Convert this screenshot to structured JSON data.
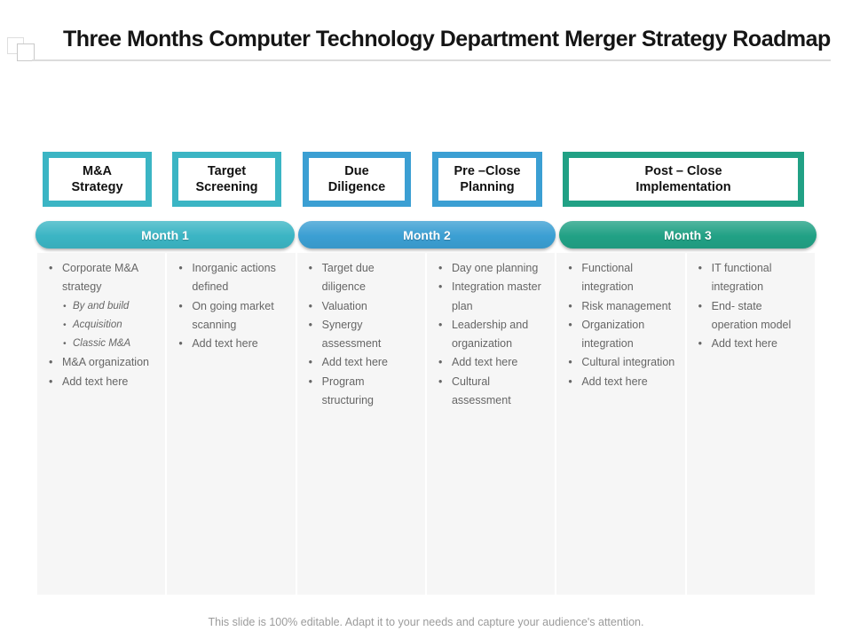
{
  "slide": {
    "title": "Three Months Computer Technology Department Merger Strategy Roadmap",
    "footer": "This slide is 100% editable. Adapt it to your needs and capture your audience's attention."
  },
  "colors": {
    "teal": "#3BB5C4",
    "blue": "#3B9FD3",
    "green": "#21A185",
    "bullet_text": "#666666",
    "column_bg": "#F6F6F6"
  },
  "phases": [
    {
      "label": "M&A\nStrategy",
      "color": "#3BB5C4"
    },
    {
      "label": "Target\nScreening",
      "color": "#3BB5C4"
    },
    {
      "label": "Due\nDiligence",
      "color": "#3B9FD3"
    },
    {
      "label": "Pre –Close\nPlanning",
      "color": "#3B9FD3"
    },
    {
      "label": "Post – Close\nImplementation",
      "color": "#21A185"
    }
  ],
  "months": [
    {
      "label": "Month 1",
      "color": "#3BB5C4"
    },
    {
      "label": "Month 2",
      "color": "#3B9FD3"
    },
    {
      "label": "Month 3",
      "color": "#21A185"
    }
  ],
  "columns": [
    {
      "month": "Month 1",
      "items": [
        {
          "text": "Corporate M&A strategy",
          "level": 1
        },
        {
          "text": "By and build",
          "level": 2
        },
        {
          "text": "Acquisition",
          "level": 2
        },
        {
          "text": "Classic M&A",
          "level": 2
        },
        {
          "text": "M&A organization",
          "level": 1
        },
        {
          "text": "Add text here",
          "level": 1
        }
      ]
    },
    {
      "month": "Month 1",
      "items": [
        {
          "text": "Inorganic actions defined",
          "level": 1
        },
        {
          "text": "On going market scanning",
          "level": 1
        },
        {
          "text": "Add text here",
          "level": 1
        }
      ]
    },
    {
      "month": "Month 2",
      "items": [
        {
          "text": "Target due diligence",
          "level": 1
        },
        {
          "text": "Valuation",
          "level": 1
        },
        {
          "text": "Synergy assessment",
          "level": 1
        },
        {
          "text": "Add text here",
          "level": 1
        },
        {
          "text": "Program structuring",
          "level": 1
        }
      ]
    },
    {
      "month": "Month 2",
      "items": [
        {
          "text": "Day one planning",
          "level": 1
        },
        {
          "text": "Integration master plan",
          "level": 1
        },
        {
          "text": "Leadership and organization",
          "level": 1
        },
        {
          "text": "Add text here",
          "level": 1
        },
        {
          "text": "Cultural assessment",
          "level": 1
        }
      ]
    },
    {
      "month": "Month 3",
      "items": [
        {
          "text": "Functional integration",
          "level": 1
        },
        {
          "text": "Risk management",
          "level": 1
        },
        {
          "text": "Organization integration",
          "level": 1
        },
        {
          "text": "Cultural integration",
          "level": 1
        },
        {
          "text": "Add text here",
          "level": 1
        }
      ]
    },
    {
      "month": "Month 3",
      "items": [
        {
          "text": "IT functional integration",
          "level": 1
        },
        {
          "text": "End- state operation model",
          "level": 1
        },
        {
          "text": "Add text here",
          "level": 1
        }
      ]
    }
  ]
}
